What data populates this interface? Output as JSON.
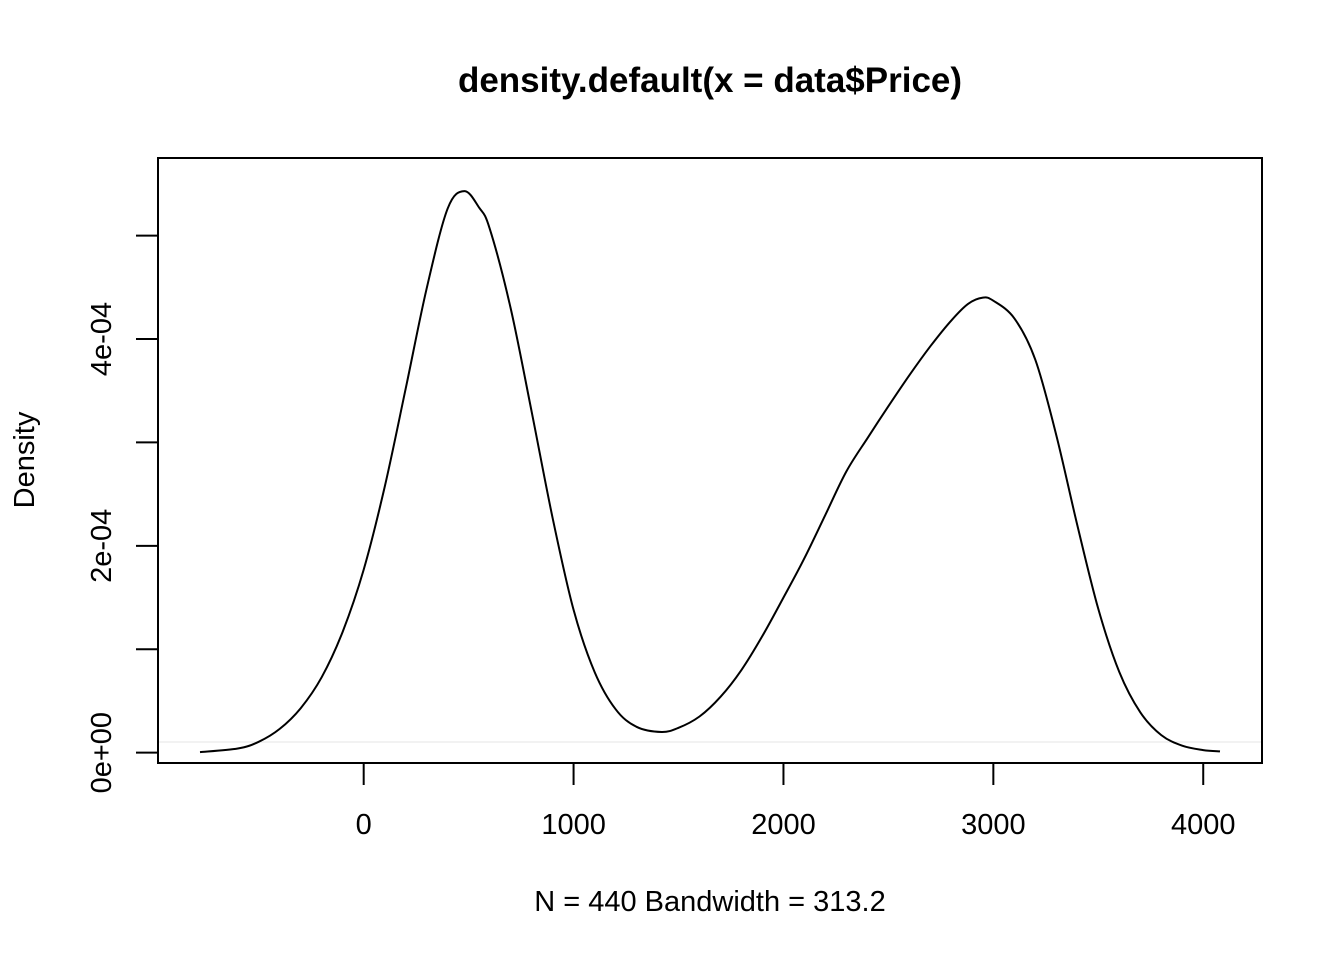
{
  "chart_data": {
    "type": "line",
    "title": "density.default(x = data$Price)",
    "xlabel": "N = 440   Bandwidth = 313.2",
    "ylabel": "Density",
    "xlim": [
      -980,
      4280
    ],
    "ylim": [
      -1e-05,
      0.000575
    ],
    "x_ticks": [
      0,
      1000,
      2000,
      3000,
      4000
    ],
    "x_tick_labels": [
      "0",
      "1000",
      "2000",
      "3000",
      "4000"
    ],
    "y_ticks": [
      0,
      0.0001,
      0.0002,
      0.0003,
      0.0004,
      0.0005
    ],
    "y_tick_labels": [
      "0e+00",
      "",
      "2e-04",
      "",
      "4e-04",
      ""
    ],
    "grid": false,
    "legend": "none",
    "series": [
      {
        "x": [
          -780,
          -600,
          -500,
          -400,
          -300,
          -200,
          -100,
          0,
          100,
          200,
          300,
          400,
          480,
          550,
          600,
          700,
          800,
          900,
          1000,
          1100,
          1200,
          1300,
          1420,
          1500,
          1600,
          1700,
          1800,
          1900,
          2000,
          2100,
          2200,
          2300,
          2400,
          2500,
          2600,
          2700,
          2800,
          2880,
          2950,
          3000,
          3100,
          3200,
          3300,
          3400,
          3500,
          3600,
          3700,
          3800,
          3900,
          4000,
          4080
        ],
        "y": [
          5e-07,
          4e-06,
          1.05e-05,
          2.3e-05,
          4.3e-05,
          7.3e-05,
          0.000117,
          0.000177,
          0.000257,
          0.000352,
          0.000449,
          0.000526,
          0.000543,
          0.000527,
          0.000507,
          0.00043,
          0.00033,
          0.000227,
          0.000138,
          7.8e-05,
          4.2e-05,
          2.5e-05,
          2e-05,
          2.4e-05,
          3.5e-05,
          5.4e-05,
          8e-05,
          0.000113,
          0.00015,
          0.000188,
          0.00023,
          0.000272,
          0.000304,
          0.000335,
          0.000365,
          0.000393,
          0.000418,
          0.000434,
          0.00044,
          0.000437,
          0.00042,
          0.00038,
          0.000307,
          0.00022,
          0.000139,
          7.8e-05,
          3.9e-05,
          1.7e-05,
          6.7e-06,
          2.5e-06,
          1.2e-06
        ]
      }
    ]
  }
}
